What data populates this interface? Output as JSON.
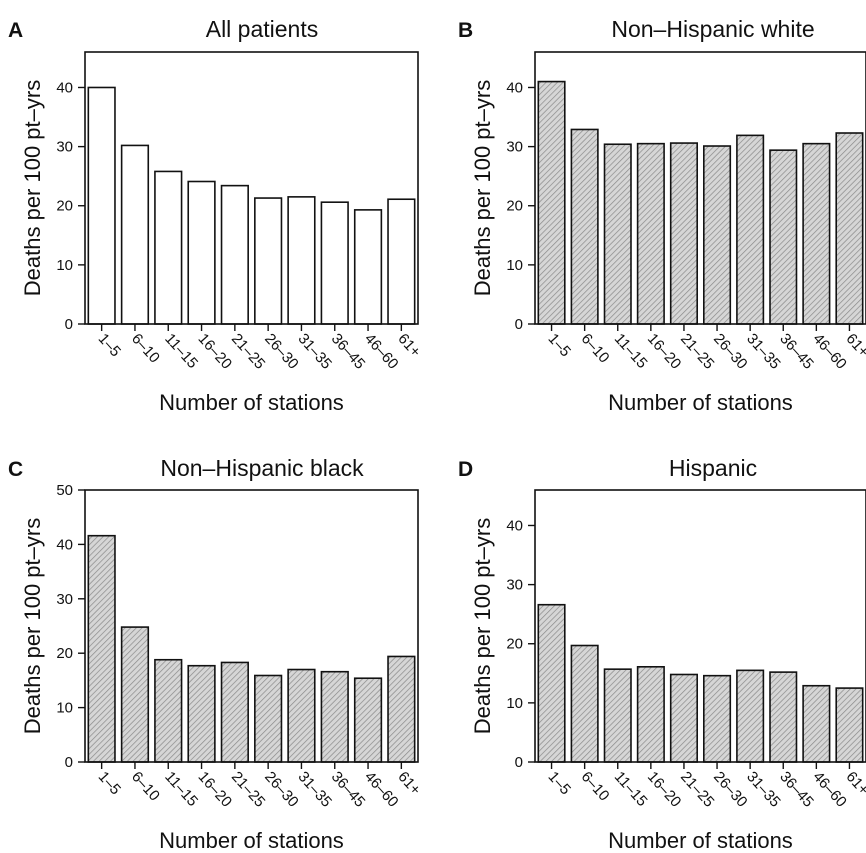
{
  "chart_data": [
    {
      "type": "bar",
      "panel": "A",
      "title": "All patients",
      "xlabel": "Number of stations",
      "ylabel": "Deaths per 100 pt–yrs",
      "categories": [
        "1–5",
        "6–10",
        "11–15",
        "16–20",
        "21–25",
        "26–30",
        "31–35",
        "36–45",
        "46–60",
        "61+"
      ],
      "values": [
        40.0,
        30.2,
        25.8,
        24.1,
        23.4,
        21.3,
        21.5,
        20.6,
        19.3,
        21.1
      ],
      "yticks": [
        0,
        10,
        20,
        30,
        40
      ],
      "ylim": [
        0,
        46
      ],
      "fill": "open"
    },
    {
      "type": "bar",
      "panel": "B",
      "title": "Non–Hispanic white",
      "xlabel": "Number of stations",
      "ylabel": "Deaths per 100 pt–yrs",
      "categories": [
        "1–5",
        "6–10",
        "11–15",
        "16–20",
        "21–25",
        "26–30",
        "31–35",
        "36–45",
        "46–60",
        "61+"
      ],
      "values": [
        41.0,
        32.9,
        30.4,
        30.5,
        30.6,
        30.1,
        31.9,
        29.4,
        30.5,
        32.3
      ],
      "yticks": [
        0,
        10,
        20,
        30,
        40
      ],
      "ylim": [
        0,
        46
      ],
      "fill": "hatched"
    },
    {
      "type": "bar",
      "panel": "C",
      "title": "Non–Hispanic black",
      "xlabel": "Number of stations",
      "ylabel": "Deaths per 100 pt–yrs",
      "categories": [
        "1–5",
        "6–10",
        "11–15",
        "16–20",
        "21–25",
        "26–30",
        "31–35",
        "36–45",
        "46–60",
        "61+"
      ],
      "values": [
        41.6,
        24.8,
        18.8,
        17.7,
        18.3,
        15.9,
        17.0,
        16.6,
        15.4,
        19.4
      ],
      "yticks": [
        0,
        10,
        20,
        30,
        40,
        50
      ],
      "ylim": [
        0,
        50
      ],
      "fill": "hatched"
    },
    {
      "type": "bar",
      "panel": "D",
      "title": "Hispanic",
      "xlabel": "Number of stations",
      "ylabel": "Deaths per 100 pt–yrs",
      "categories": [
        "1–5",
        "6–10",
        "11–15",
        "16–20",
        "21–25",
        "26–30",
        "31–35",
        "36–45",
        "46–60",
        "61+"
      ],
      "values": [
        26.6,
        19.7,
        15.7,
        16.1,
        14.8,
        14.6,
        15.5,
        15.2,
        12.9,
        12.5
      ],
      "yticks": [
        0,
        10,
        20,
        30,
        40
      ],
      "ylim": [
        0,
        46
      ],
      "fill": "hatched"
    }
  ],
  "colors": {
    "bar_fill_hatched": "#d6d6d6",
    "hatch_line": "#8a8a8a",
    "stroke": "#111111"
  }
}
